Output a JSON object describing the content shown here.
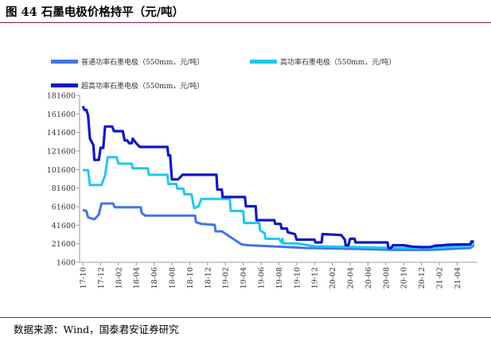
{
  "figure": {
    "title": "图 44 石墨电极价格持平（元/吨）",
    "source": "数据来源：Wind，国泰君安证券研究"
  },
  "chart_data": {
    "type": "line",
    "ylim": [
      1600,
      181600
    ],
    "yticks": [
      1600,
      21600,
      41600,
      61600,
      81600,
      101600,
      121600,
      141600,
      161600,
      181600
    ],
    "xticks": [
      "17-10",
      "17-12",
      "18-02",
      "18-04",
      "18-06",
      "18-08",
      "18-10",
      "18-12",
      "19-02",
      "19-04",
      "19-06",
      "19-08",
      "19-10",
      "19-12",
      "20-02",
      "20-04",
      "20-06",
      "20-08",
      "20-10",
      "20-12",
      "21-02",
      "21-04"
    ],
    "x_unit": "month index from 2017-10",
    "series": [
      {
        "name": "普通功率石墨电极（550mm，元/吨）",
        "color": "#4472e8",
        "points": [
          [
            0,
            58000
          ],
          [
            0.4,
            57000
          ],
          [
            0.6,
            50000
          ],
          [
            1.3,
            48000
          ],
          [
            1.8,
            53000
          ],
          [
            2.1,
            65000
          ],
          [
            3.4,
            65000
          ],
          [
            3.6,
            61000
          ],
          [
            6.5,
            61000
          ],
          [
            6.6,
            55000
          ],
          [
            7.0,
            52000
          ],
          [
            12.6,
            52000
          ],
          [
            12.7,
            45000
          ],
          [
            13.3,
            43000
          ],
          [
            14.8,
            42000
          ],
          [
            14.9,
            35000
          ],
          [
            15.6,
            35000
          ],
          [
            17.8,
            21000
          ],
          [
            18.5,
            20000
          ],
          [
            21.0,
            19000
          ],
          [
            25.0,
            17000
          ],
          [
            31.0,
            16000
          ],
          [
            35.0,
            15000
          ],
          [
            37.0,
            15000
          ],
          [
            39.0,
            15000
          ],
          [
            41.0,
            16000
          ],
          [
            43.5,
            17000
          ],
          [
            43.9,
            20000
          ]
        ]
      },
      {
        "name": "高功率石墨电极（550mm，元/吨）",
        "color": "#1ec8f0",
        "points": [
          [
            0,
            101000
          ],
          [
            0.6,
            101000
          ],
          [
            0.8,
            85000
          ],
          [
            2.1,
            85000
          ],
          [
            2.5,
            95000
          ],
          [
            2.8,
            115000
          ],
          [
            3.8,
            115000
          ],
          [
            4.0,
            108000
          ],
          [
            5.5,
            108000
          ],
          [
            5.6,
            103000
          ],
          [
            7.3,
            103000
          ],
          [
            7.4,
            96000
          ],
          [
            9.5,
            96000
          ],
          [
            9.6,
            86000
          ],
          [
            10.5,
            86000
          ],
          [
            10.6,
            81000
          ],
          [
            11.3,
            81000
          ],
          [
            11.4,
            75000
          ],
          [
            12.2,
            75000
          ],
          [
            12.5,
            60000
          ],
          [
            13.0,
            62000
          ],
          [
            13.3,
            70000
          ],
          [
            16.5,
            70000
          ],
          [
            16.6,
            57000
          ],
          [
            18.0,
            57000
          ],
          [
            18.1,
            44000
          ],
          [
            19.8,
            44000
          ],
          [
            19.9,
            36000
          ],
          [
            20.4,
            33000
          ],
          [
            20.5,
            27000
          ],
          [
            22.0,
            27000
          ],
          [
            22.3,
            23000
          ],
          [
            22.4,
            27000
          ],
          [
            22.5,
            22000
          ],
          [
            24.0,
            22000
          ],
          [
            26.0,
            19000
          ],
          [
            31.0,
            18000
          ],
          [
            35.0,
            17000
          ],
          [
            37.0,
            17000
          ],
          [
            39.0,
            17000
          ],
          [
            41.0,
            18000
          ],
          [
            43.5,
            19000
          ],
          [
            43.9,
            22000
          ]
        ]
      },
      {
        "name": "超高功率石墨电极（550mm，元/吨）",
        "color": "#1018c0",
        "points": [
          [
            0,
            170000
          ],
          [
            0.2,
            166000
          ],
          [
            0.4,
            166000
          ],
          [
            0.6,
            160000
          ],
          [
            0.8,
            135000
          ],
          [
            1.2,
            128000
          ],
          [
            1.3,
            112000
          ],
          [
            1.8,
            112000
          ],
          [
            2.0,
            125000
          ],
          [
            2.3,
            125000
          ],
          [
            2.5,
            148000
          ],
          [
            3.3,
            148000
          ],
          [
            3.5,
            143000
          ],
          [
            4.5,
            143000
          ],
          [
            4.7,
            133000
          ],
          [
            5.0,
            133000
          ],
          [
            5.2,
            130000
          ],
          [
            5.5,
            130000
          ],
          [
            5.6,
            135000
          ],
          [
            6.0,
            130000
          ],
          [
            6.4,
            126000
          ],
          [
            9.5,
            126000
          ],
          [
            9.6,
            117000
          ],
          [
            9.8,
            117000
          ],
          [
            10.0,
            91000
          ],
          [
            10.7,
            91000
          ],
          [
            11.2,
            96000
          ],
          [
            15.0,
            96000
          ],
          [
            15.1,
            80000
          ],
          [
            15.6,
            80000
          ],
          [
            15.7,
            72000
          ],
          [
            18.2,
            72000
          ],
          [
            18.3,
            62000
          ],
          [
            19.4,
            62000
          ],
          [
            19.5,
            47000
          ],
          [
            21.5,
            47000
          ],
          [
            21.6,
            43000
          ],
          [
            22.2,
            43000
          ],
          [
            22.3,
            38000
          ],
          [
            22.9,
            38000
          ],
          [
            23.0,
            34000
          ],
          [
            23.8,
            32000
          ],
          [
            24.0,
            26000
          ],
          [
            26.0,
            26000
          ],
          [
            26.1,
            23000
          ],
          [
            26.8,
            23000
          ],
          [
            26.9,
            32000
          ],
          [
            29.0,
            31000
          ],
          [
            29.4,
            26000
          ],
          [
            29.5,
            20000
          ],
          [
            29.8,
            20000
          ],
          [
            30.0,
            27000
          ],
          [
            30.5,
            27000
          ],
          [
            30.6,
            23000
          ],
          [
            34.2,
            23000
          ],
          [
            34.3,
            17000
          ],
          [
            34.6,
            17000
          ],
          [
            34.8,
            20000
          ],
          [
            36.0,
            20000
          ],
          [
            37.0,
            18500
          ],
          [
            38.0,
            18000
          ],
          [
            39.0,
            18000
          ],
          [
            39.5,
            19500
          ],
          [
            40.5,
            20000
          ],
          [
            41.0,
            20500
          ],
          [
            43.5,
            21000
          ],
          [
            43.6,
            24000
          ],
          [
            43.9,
            24000
          ]
        ]
      }
    ]
  }
}
